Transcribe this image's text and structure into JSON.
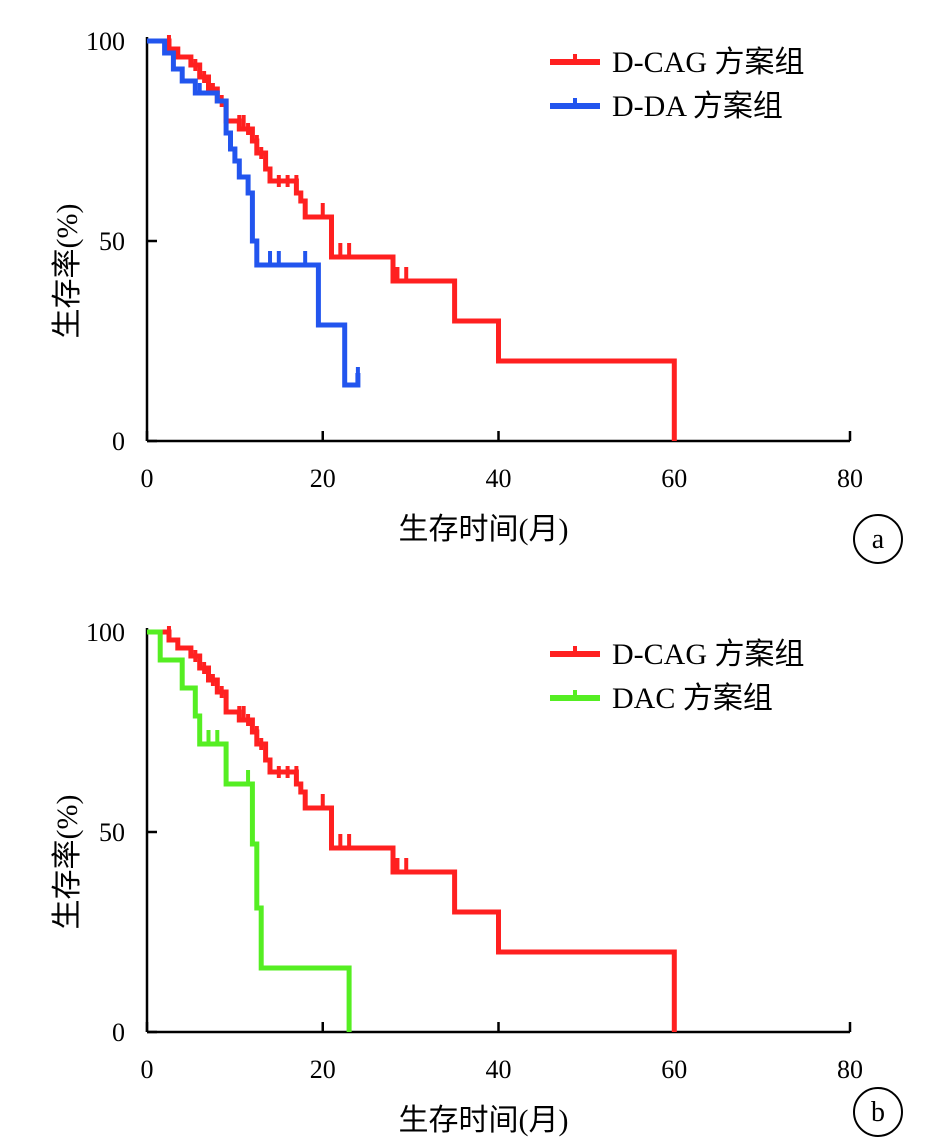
{
  "chart_data": [
    {
      "type": "line",
      "panel_label": "a",
      "xlabel": "生存时间(月)",
      "ylabel": "生存率(%)",
      "xlim": [
        0,
        80
      ],
      "ylim": [
        0,
        100
      ],
      "xticks": [
        0,
        20,
        40,
        60,
        80
      ],
      "yticks": [
        0,
        50,
        100
      ],
      "legend_position": "top-right",
      "series": [
        {
          "name": "D-CAG 方案组",
          "color": "#ff2020",
          "steps": [
            [
              0,
              100
            ],
            [
              2.5,
              100
            ],
            [
              2.5,
              98
            ],
            [
              3.5,
              98
            ],
            [
              3.5,
              96
            ],
            [
              5,
              96
            ],
            [
              5,
              94
            ],
            [
              6,
              94
            ],
            [
              6,
              91
            ],
            [
              7,
              91
            ],
            [
              7,
              88
            ],
            [
              8,
              88
            ],
            [
              8,
              85
            ],
            [
              9,
              85
            ],
            [
              9,
              80
            ],
            [
              10.5,
              80
            ],
            [
              10.5,
              78
            ],
            [
              12,
              78
            ],
            [
              12,
              75
            ],
            [
              12.5,
              75
            ],
            [
              12.5,
              72
            ],
            [
              13.5,
              72
            ],
            [
              13.5,
              68
            ],
            [
              14,
              68
            ],
            [
              14,
              65
            ],
            [
              17,
              65
            ],
            [
              17,
              62
            ],
            [
              17.5,
              62
            ],
            [
              17.5,
              60
            ],
            [
              18,
              60
            ],
            [
              18,
              56
            ],
            [
              21,
              56
            ],
            [
              21,
              46
            ],
            [
              28,
              46
            ],
            [
              28,
              40
            ],
            [
              35,
              40
            ],
            [
              35,
              30
            ],
            [
              40,
              30
            ],
            [
              40,
              20
            ],
            [
              60,
              20
            ],
            [
              60,
              0
            ]
          ],
          "censored": [
            [
              2.5,
              100
            ],
            [
              5.5,
              94
            ],
            [
              6.5,
              91
            ],
            [
              7.5,
              88
            ],
            [
              8.5,
              85
            ],
            [
              10.5,
              80
            ],
            [
              11,
              80
            ],
            [
              11.5,
              78
            ],
            [
              12.5,
              75
            ],
            [
              13,
              72
            ],
            [
              15,
              65
            ],
            [
              16,
              65
            ],
            [
              17,
              65
            ],
            [
              20,
              58
            ],
            [
              22,
              48
            ],
            [
              23,
              48
            ],
            [
              28.5,
              42
            ],
            [
              29.5,
              42
            ]
          ]
        },
        {
          "name": "D-DA 方案组",
          "color": "#2255ee",
          "steps": [
            [
              0,
              100
            ],
            [
              2,
              100
            ],
            [
              2,
              97
            ],
            [
              3,
              97
            ],
            [
              3,
              93
            ],
            [
              4,
              93
            ],
            [
              4,
              90
            ],
            [
              5.5,
              90
            ],
            [
              5.5,
              87
            ],
            [
              8,
              87
            ],
            [
              8,
              85
            ],
            [
              9,
              85
            ],
            [
              9,
              77
            ],
            [
              9.5,
              77
            ],
            [
              9.5,
              73
            ],
            [
              10,
              73
            ],
            [
              10,
              70
            ],
            [
              10.5,
              70
            ],
            [
              10.5,
              66
            ],
            [
              11.5,
              66
            ],
            [
              11.5,
              62
            ],
            [
              12,
              62
            ],
            [
              12,
              50
            ],
            [
              12.5,
              50
            ],
            [
              12.5,
              44
            ],
            [
              19.5,
              44
            ],
            [
              19.5,
              29
            ],
            [
              22.5,
              29
            ],
            [
              22.5,
              14
            ],
            [
              24,
              14
            ],
            [
              24,
              17
            ]
          ],
          "censored": [
            [
              6,
              88
            ],
            [
              14,
              46
            ],
            [
              15,
              46
            ],
            [
              18,
              46
            ],
            [
              24,
              17
            ]
          ]
        }
      ]
    },
    {
      "type": "line",
      "panel_label": "b",
      "xlabel": "生存时间(月)",
      "ylabel": "生存率(%)",
      "xlim": [
        0,
        80
      ],
      "ylim": [
        0,
        100
      ],
      "xticks": [
        0,
        20,
        40,
        60,
        80
      ],
      "yticks": [
        0,
        50,
        100
      ],
      "legend_position": "top-right",
      "series": [
        {
          "name": "D-CAG 方案组",
          "color": "#ff2020",
          "steps": [
            [
              0,
              100
            ],
            [
              2.5,
              100
            ],
            [
              2.5,
              98
            ],
            [
              3.5,
              98
            ],
            [
              3.5,
              96
            ],
            [
              5,
              96
            ],
            [
              5,
              94
            ],
            [
              6,
              94
            ],
            [
              6,
              91
            ],
            [
              7,
              91
            ],
            [
              7,
              88
            ],
            [
              8,
              88
            ],
            [
              8,
              85
            ],
            [
              9,
              85
            ],
            [
              9,
              80
            ],
            [
              10.5,
              80
            ],
            [
              10.5,
              78
            ],
            [
              12,
              78
            ],
            [
              12,
              75
            ],
            [
              12.5,
              75
            ],
            [
              12.5,
              72
            ],
            [
              13.5,
              72
            ],
            [
              13.5,
              68
            ],
            [
              14,
              68
            ],
            [
              14,
              65
            ],
            [
              17,
              65
            ],
            [
              17,
              62
            ],
            [
              17.5,
              62
            ],
            [
              17.5,
              60
            ],
            [
              18,
              60
            ],
            [
              18,
              56
            ],
            [
              21,
              56
            ],
            [
              21,
              46
            ],
            [
              28,
              46
            ],
            [
              28,
              40
            ],
            [
              35,
              40
            ],
            [
              35,
              30
            ],
            [
              40,
              30
            ],
            [
              40,
              20
            ],
            [
              60,
              20
            ],
            [
              60,
              0
            ]
          ],
          "censored": [
            [
              2.5,
              100
            ],
            [
              5.5,
              94
            ],
            [
              6.5,
              91
            ],
            [
              7.5,
              88
            ],
            [
              8.5,
              85
            ],
            [
              10.5,
              80
            ],
            [
              11,
              80
            ],
            [
              11.5,
              78
            ],
            [
              12.5,
              75
            ],
            [
              13,
              72
            ],
            [
              15,
              65
            ],
            [
              16,
              65
            ],
            [
              17,
              65
            ],
            [
              20,
              58
            ],
            [
              22,
              48
            ],
            [
              23,
              48
            ],
            [
              28.5,
              42
            ],
            [
              29.5,
              42
            ]
          ]
        },
        {
          "name": "DAC 方案组",
          "color": "#55ee22",
          "steps": [
            [
              0,
              100
            ],
            [
              1.5,
              100
            ],
            [
              1.5,
              93
            ],
            [
              4,
              93
            ],
            [
              4,
              86
            ],
            [
              5.5,
              86
            ],
            [
              5.5,
              79
            ],
            [
              6,
              79
            ],
            [
              6,
              72
            ],
            [
              9,
              72
            ],
            [
              9,
              62
            ],
            [
              12,
              62
            ],
            [
              12,
              47
            ],
            [
              12.5,
              47
            ],
            [
              12.5,
              31
            ],
            [
              13,
              31
            ],
            [
              13,
              16
            ],
            [
              23,
              16
            ],
            [
              23,
              0
            ]
          ],
          "censored": [
            [
              7,
              74
            ],
            [
              8,
              74
            ],
            [
              11.5,
              64
            ]
          ]
        }
      ]
    }
  ]
}
